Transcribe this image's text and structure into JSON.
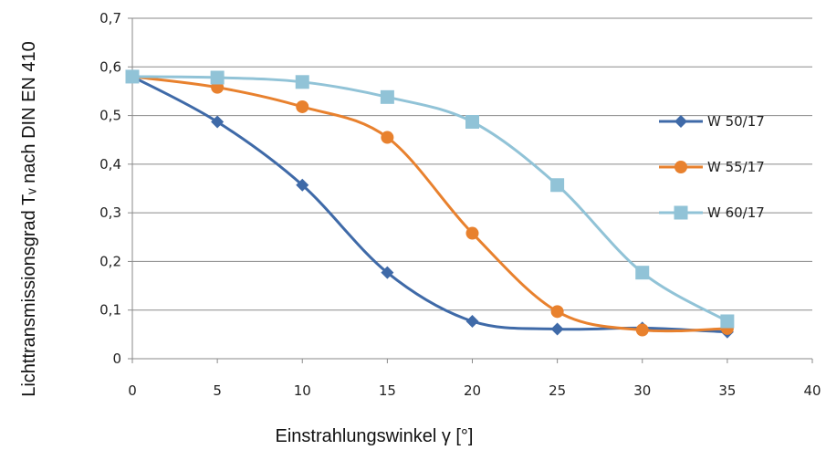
{
  "chart_data": {
    "type": "line",
    "title": "",
    "xlabel": "Einstrahlungswinkel γ [°]",
    "ylabel": "Lichttransmissionsgrad Tᵥ nach DIN EN 410",
    "xlim": [
      0,
      40
    ],
    "ylim": [
      0,
      0.7
    ],
    "x_ticks": [
      "0",
      "5",
      "10",
      "15",
      "20",
      "25",
      "30",
      "35",
      "40"
    ],
    "y_ticks": [
      "0",
      "0,1",
      "0,2",
      "0,3",
      "0,4",
      "0,5",
      "0,6",
      "0,7"
    ],
    "grid": "horizontal",
    "legend_position": "right",
    "series": [
      {
        "name": "W 50/17",
        "color": "#3f6aa8",
        "marker": "diamond",
        "x": [
          0,
          5,
          10,
          15,
          20,
          25,
          30,
          35
        ],
        "values": [
          0.58,
          0.487,
          0.357,
          0.177,
          0.077,
          0.061,
          0.063,
          0.055
        ]
      },
      {
        "name": "W 55/17",
        "color": "#e8812e",
        "marker": "circle",
        "x": [
          0,
          5,
          10,
          15,
          20,
          25,
          30,
          35
        ],
        "values": [
          0.58,
          0.558,
          0.518,
          0.455,
          0.258,
          0.097,
          0.059,
          0.062
        ]
      },
      {
        "name": "W 60/17",
        "color": "#91c3d7",
        "marker": "square",
        "x": [
          0,
          5,
          10,
          15,
          20,
          25,
          30,
          35
        ],
        "values": [
          0.58,
          0.578,
          0.569,
          0.538,
          0.487,
          0.357,
          0.177,
          0.077
        ]
      }
    ]
  }
}
